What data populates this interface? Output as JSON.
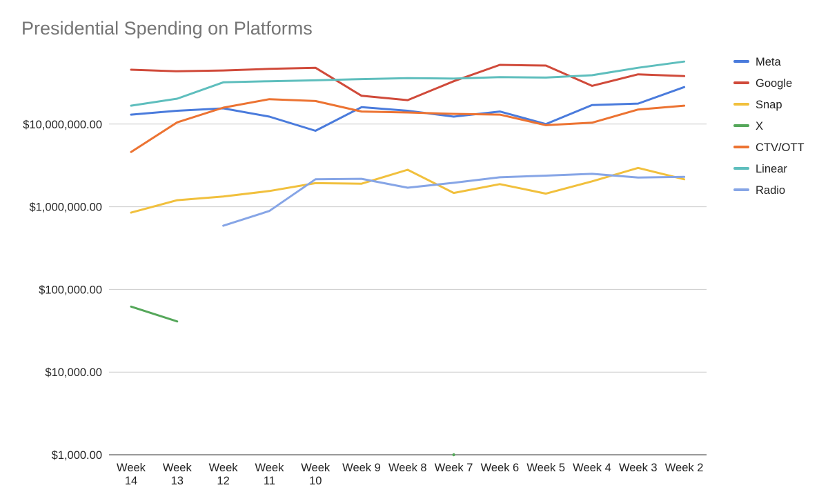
{
  "chart_data": {
    "type": "line",
    "title": "Presidential Spending on Platforms",
    "xlabel": "",
    "ylabel": "",
    "y_scale": "log",
    "ylim": [
      1000,
      70000000
    ],
    "y_ticks": [
      {
        "value": 1000,
        "label": "$1,000.00"
      },
      {
        "value": 10000,
        "label": "$10,000.00"
      },
      {
        "value": 100000,
        "label": "$100,000.00"
      },
      {
        "value": 1000000,
        "label": "$1,000,000.00"
      },
      {
        "value": 10000000,
        "label": "$10,000,000.00"
      }
    ],
    "grid": true,
    "legend_position": "right",
    "categories": [
      "Week 14",
      "Week 13",
      "Week 12",
      "Week 11",
      "Week 10",
      "Week 9",
      "Week 8",
      "Week 7",
      "Week 6",
      "Week 5",
      "Week 4",
      "Week 3",
      "Week 2"
    ],
    "category_lines": [
      [
        "Week",
        "14"
      ],
      [
        "Week",
        "13"
      ],
      [
        "Week",
        "12"
      ],
      [
        "Week",
        "11"
      ],
      [
        "Week",
        "10"
      ],
      [
        "Week 9"
      ],
      [
        "Week 8"
      ],
      [
        "Week 7"
      ],
      [
        "Week 6"
      ],
      [
        "Week 5"
      ],
      [
        "Week 4"
      ],
      [
        "Week 3"
      ],
      [
        "Week 2"
      ]
    ],
    "series": [
      {
        "name": "Meta",
        "color": "#4a7bdc",
        "values": [
          13000000,
          14500000,
          15500000,
          12300000,
          8300000,
          16000000,
          14500000,
          12300000,
          14200000,
          10000000,
          17000000,
          17700000,
          28000000
        ]
      },
      {
        "name": "Google",
        "color": "#d04a3a",
        "values": [
          45500000,
          43500000,
          44500000,
          46500000,
          48000000,
          22000000,
          19500000,
          33000000,
          52000000,
          51000000,
          29000000,
          40000000,
          38000000
        ]
      },
      {
        "name": "Snap",
        "color": "#f1c03d",
        "values": [
          850000,
          1200000,
          1330000,
          1550000,
          1930000,
          1900000,
          2800000,
          1470000,
          1880000,
          1440000,
          2030000,
          2950000,
          2150000
        ]
      },
      {
        "name": "X",
        "color": "#55a75a",
        "values": [
          62000,
          41000,
          null,
          null,
          null,
          null,
          null,
          1000,
          null,
          null,
          null,
          null,
          null
        ]
      },
      {
        "name": "CTV/OTT",
        "color": "#ec7332",
        "values": [
          4600000,
          10500000,
          15800000,
          20000000,
          19000000,
          14200000,
          13800000,
          13300000,
          13000000,
          9700000,
          10400000,
          15000000,
          16700000
        ]
      },
      {
        "name": "Linear",
        "color": "#5ebebd",
        "values": [
          16700000,
          20300000,
          32000000,
          33000000,
          33800000,
          35000000,
          36000000,
          35500000,
          37000000,
          36500000,
          39000000,
          48000000,
          57000000
        ]
      },
      {
        "name": "Radio",
        "color": "#86a5e6",
        "values": [
          null,
          null,
          590000,
          890000,
          2150000,
          2180000,
          1700000,
          1950000,
          2270000,
          2380000,
          2500000,
          2260000,
          2300000
        ]
      }
    ]
  }
}
